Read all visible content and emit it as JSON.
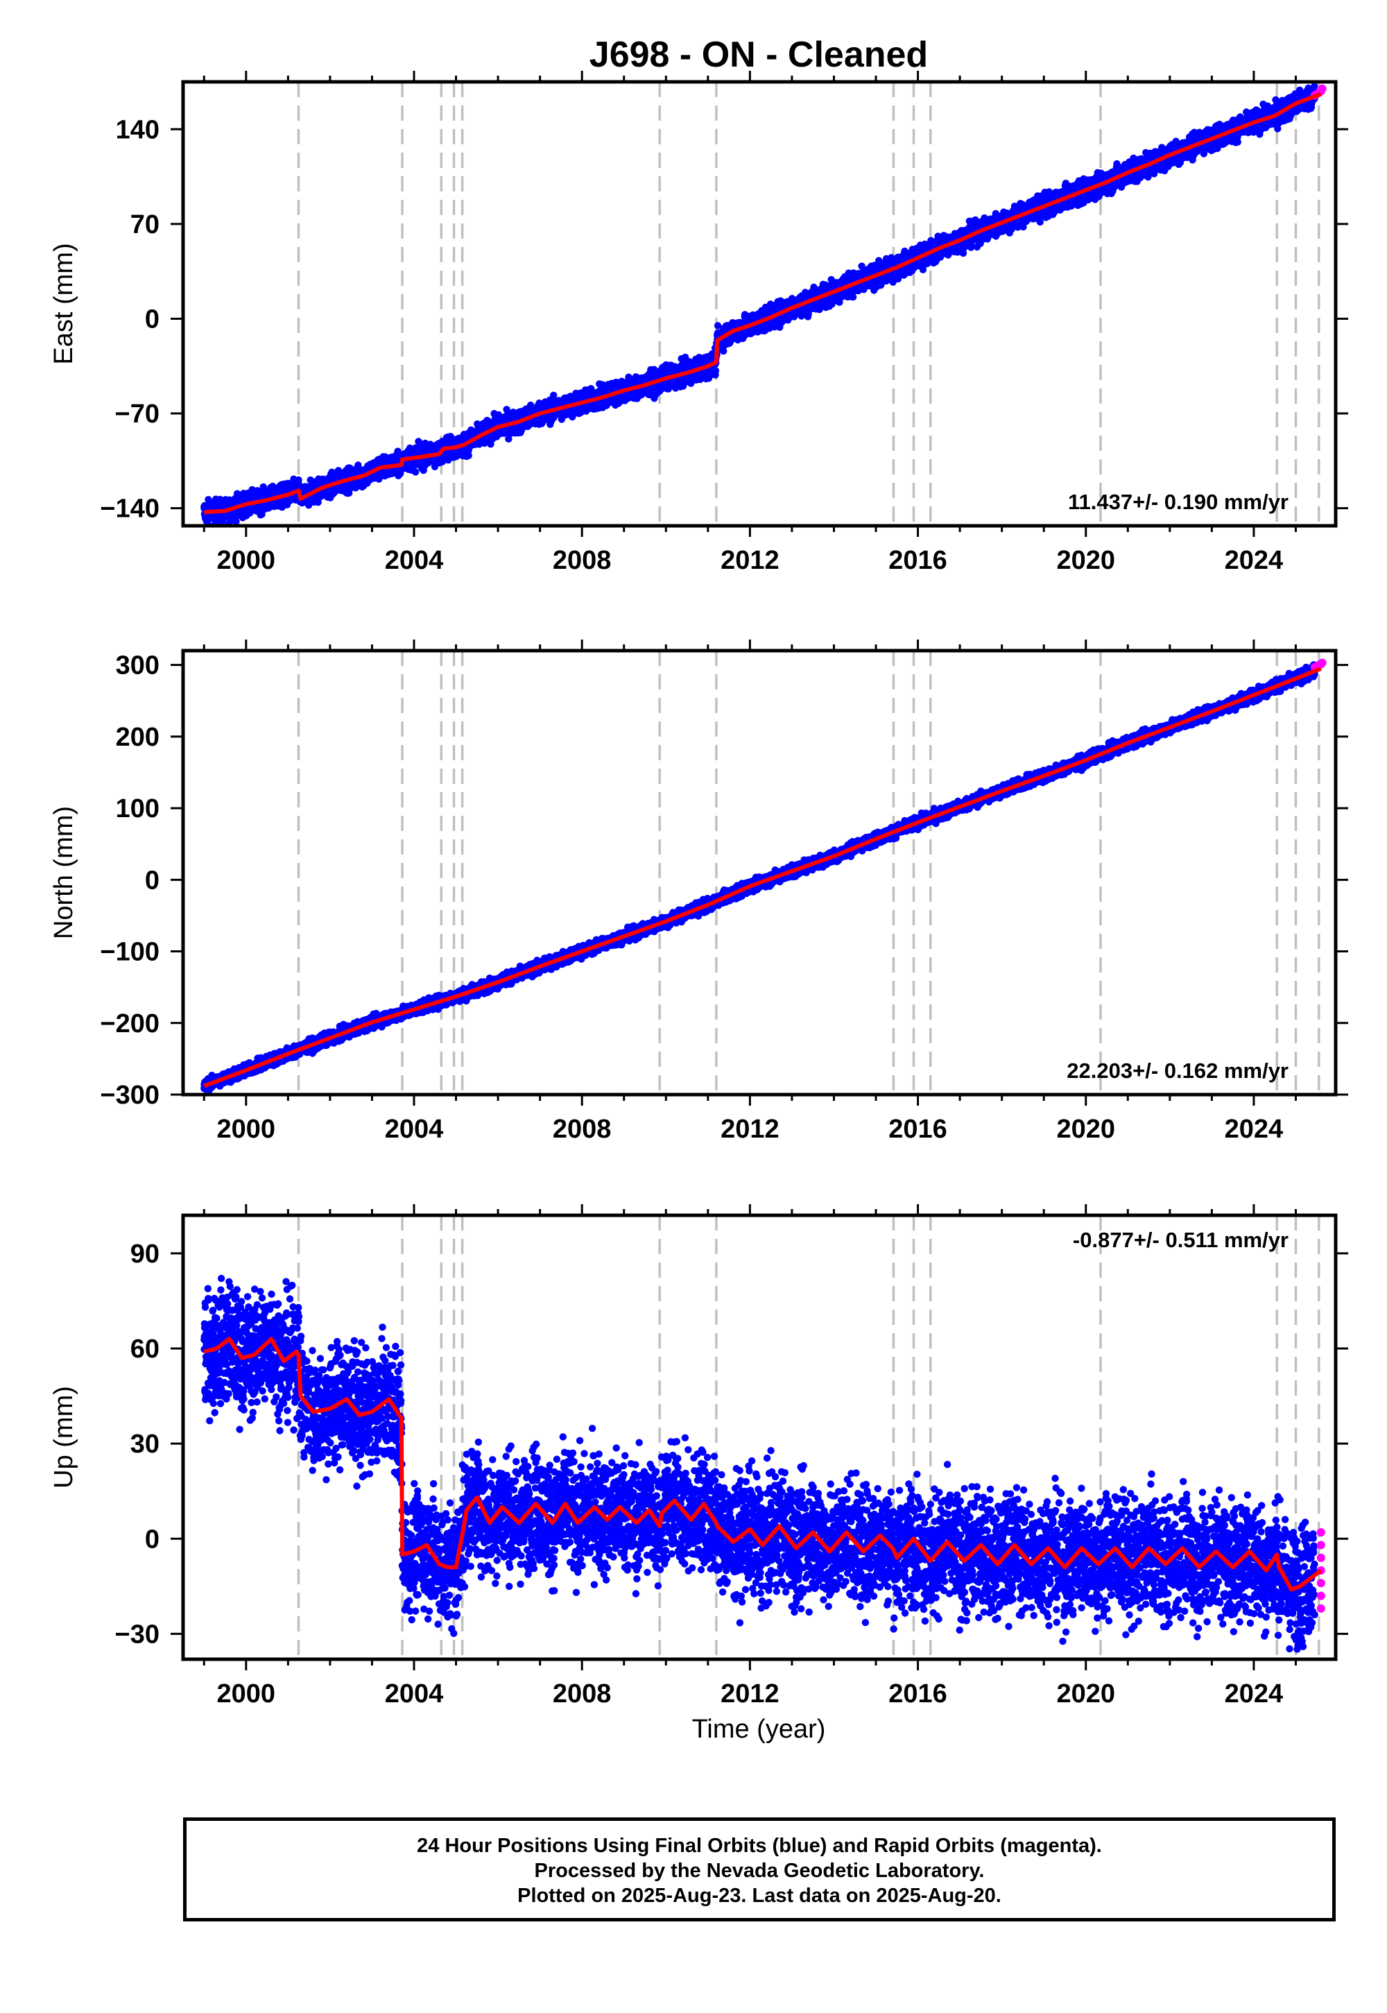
{
  "title": "J698  - ON - Cleaned",
  "xlabel": "Time (year)",
  "footer": {
    "line1": "24 Hour Positions Using Final Orbits (blue) and Rapid Orbits (magenta).",
    "line2": "Processed by the Nevada Geodetic Laboratory.",
    "line3": "Plotted on 2025-Aug-23. Last data on 2025-Aug-20."
  },
  "colors": {
    "final": "#0000ff",
    "rapid": "#ff00ff",
    "model": "#ff0000",
    "steps": "#c0c0c0"
  },
  "chart_data": [
    {
      "type": "scatter",
      "component": "east",
      "ylabel": "East (mm)",
      "rate_label": "11.437+/- 0.190 mm/yr",
      "xlim": [
        1998.5,
        2025.95
      ],
      "ylim": [
        -153,
        175
      ],
      "xticks": [
        2000,
        2004,
        2008,
        2012,
        2016,
        2020,
        2024
      ],
      "yticks": [
        -140,
        -70,
        0,
        70,
        140
      ],
      "ytick_labels": [
        "−140",
        "−70",
        "0",
        "70",
        "140"
      ],
      "scatter_spread": 4,
      "model": {
        "x": [
          1999.0,
          1999.5,
          2000.0,
          2000.5,
          2001.0,
          2001.25,
          2001.3,
          2001.8,
          2002.3,
          2002.8,
          2003.2,
          2003.7,
          2003.72,
          2004.2,
          2004.6,
          2004.7,
          2005.0,
          2005.2,
          2005.6,
          2006.0,
          2006.5,
          2007.0,
          2007.5,
          2008.0,
          2008.5,
          2009.0,
          2009.5,
          2010.0,
          2010.5,
          2011.0,
          2011.2,
          2011.22,
          2011.6,
          2012.0,
          2012.5,
          2013.0,
          2013.5,
          2014.0,
          2014.5,
          2015.0,
          2015.5,
          2016.0,
          2016.5,
          2017.0,
          2017.5,
          2018.0,
          2018.5,
          2019.0,
          2019.5,
          2020.0,
          2020.5,
          2021.0,
          2021.5,
          2022.0,
          2022.5,
          2023.0,
          2023.5,
          2024.0,
          2024.5,
          2025.0,
          2025.6
        ],
        "y": [
          -143,
          -142,
          -137,
          -134,
          -130,
          -127,
          -133,
          -125,
          -120,
          -116,
          -110,
          -108,
          -104,
          -102,
          -100,
          -96,
          -95,
          -93,
          -86,
          -80,
          -76,
          -70,
          -66,
          -62,
          -58,
          -53,
          -49,
          -44,
          -40,
          -35,
          -32,
          -16,
          -9,
          -5,
          1,
          8,
          14,
          20,
          26,
          32,
          38,
          45,
          52,
          58,
          65,
          71,
          77,
          83,
          89,
          95,
          101,
          108,
          114,
          121,
          127,
          133,
          139,
          145,
          150,
          159,
          166
        ]
      },
      "rapid": {
        "x": [
          2025.45,
          2025.5,
          2025.55,
          2025.6,
          2025.63
        ],
        "y": [
          165,
          166,
          167,
          168,
          170
        ]
      }
    },
    {
      "type": "scatter",
      "component": "north",
      "ylabel": "North (mm)",
      "rate_label": "22.203+/- 0.162 mm/yr",
      "xlim": [
        1998.5,
        2025.95
      ],
      "ylim": [
        -300,
        320
      ],
      "xticks": [
        2000,
        2004,
        2008,
        2012,
        2016,
        2020,
        2024
      ],
      "yticks": [
        -300,
        -200,
        -100,
        0,
        100,
        200,
        300
      ],
      "ytick_labels": [
        "−300",
        "−200",
        "−100",
        "0",
        "100",
        "200",
        "300"
      ],
      "scatter_spread": 4,
      "model": {
        "x": [
          1999.0,
          2000.0,
          2001.0,
          2002.0,
          2003.0,
          2004.0,
          2005.0,
          2006.0,
          2007.0,
          2008.0,
          2009.0,
          2010.0,
          2011.0,
          2012.0,
          2013.0,
          2014.0,
          2015.0,
          2016.0,
          2017.0,
          2018.0,
          2019.0,
          2020.0,
          2021.0,
          2022.0,
          2023.0,
          2024.0,
          2025.0,
          2025.6
        ],
        "y": [
          -288,
          -266,
          -243,
          -221,
          -199,
          -181,
          -163,
          -143,
          -121,
          -100,
          -79,
          -58,
          -35,
          -9,
          12,
          33,
          57,
          80,
          102,
          124,
          145,
          167,
          191,
          213,
          235,
          258,
          281,
          295
        ]
      },
      "rapid": {
        "x": [
          2025.45,
          2025.5,
          2025.55,
          2025.6,
          2025.63
        ],
        "y": [
          297,
          298,
          300,
          301,
          303
        ]
      }
    },
    {
      "type": "scatter",
      "component": "up",
      "ylabel": "Up (mm)",
      "rate_label": "-0.877+/- 0.511 mm/yr",
      "xlim": [
        1998.5,
        2025.95
      ],
      "ylim": [
        -38,
        102
      ],
      "xticks": [
        2000,
        2004,
        2008,
        2012,
        2016,
        2020,
        2024
      ],
      "yticks": [
        -30,
        0,
        30,
        60,
        90
      ],
      "ytick_labels": [
        "−30",
        "0",
        "30",
        "60",
        "90"
      ],
      "scatter_spread": 9,
      "model": {
        "x": [
          1999.0,
          1999.3,
          1999.6,
          1999.9,
          2000.2,
          2000.6,
          2000.9,
          2001.2,
          2001.25,
          2001.3,
          2001.6,
          2002.0,
          2002.4,
          2002.7,
          2003.0,
          2003.4,
          2003.7,
          2003.72,
          2004.0,
          2004.3,
          2004.6,
          2004.8,
          2005.0,
          2005.2,
          2005.25,
          2005.5,
          2005.8,
          2006.1,
          2006.5,
          2006.9,
          2007.3,
          2007.6,
          2007.9,
          2008.3,
          2008.6,
          2008.9,
          2009.3,
          2009.6,
          2009.85,
          2009.9,
          2010.2,
          2010.6,
          2010.9,
          2011.2,
          2011.22,
          2011.6,
          2012.0,
          2012.3,
          2012.7,
          2013.1,
          2013.5,
          2013.9,
          2014.3,
          2014.7,
          2015.1,
          2015.4,
          2015.5,
          2015.9,
          2016.3,
          2016.7,
          2017.1,
          2017.5,
          2017.9,
          2018.3,
          2018.7,
          2019.1,
          2019.5,
          2019.9,
          2020.3,
          2020.7,
          2021.1,
          2021.5,
          2021.9,
          2022.3,
          2022.7,
          2023.1,
          2023.5,
          2023.9,
          2024.3,
          2024.55,
          2024.6,
          2024.9,
          2025.1,
          2025.3,
          2025.6
        ],
        "y": [
          59,
          60,
          63,
          57,
          58,
          63,
          56,
          59,
          58,
          45,
          40,
          41,
          44,
          39,
          40,
          44,
          38,
          -5,
          -4,
          -2,
          -8,
          -9,
          -9,
          5,
          9,
          13,
          5,
          10,
          5,
          11,
          5,
          11,
          5,
          10,
          6,
          10,
          5,
          9,
          4,
          8,
          12,
          6,
          11,
          5,
          4,
          -1,
          3,
          -2,
          4,
          -3,
          2,
          -4,
          2,
          -4,
          1,
          -3,
          -6,
          0,
          -7,
          -1,
          -7,
          -2,
          -8,
          -2,
          -8,
          -3,
          -9,
          -3,
          -8,
          -3,
          -9,
          -3,
          -8,
          -3,
          -9,
          -4,
          -9,
          -4,
          -10,
          -5,
          -9,
          -16,
          -15,
          -13,
          -10
        ]
      },
      "rapid": {
        "x": [
          2025.6,
          2025.6,
          2025.6,
          2025.6,
          2025.6,
          2025.6,
          2025.6
        ],
        "y": [
          2,
          -2,
          -6,
          -10,
          -14,
          -18,
          -22
        ]
      }
    }
  ],
  "step_epochs": [
    2001.25,
    2003.72,
    2004.65,
    2004.95,
    2005.15,
    2009.85,
    2011.2,
    2015.42,
    2015.9,
    2016.3,
    2020.35,
    2024.55,
    2025.0,
    2025.55
  ]
}
